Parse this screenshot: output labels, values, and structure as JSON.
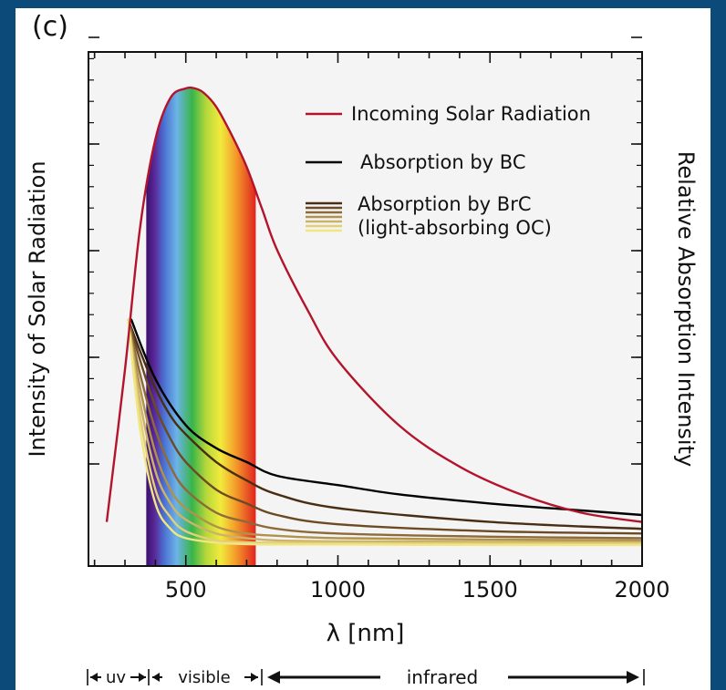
{
  "panel_label": "(c)",
  "chart_data": {
    "type": "line",
    "xlabel": "λ [nm]",
    "ylabel_left": "Intensity of Solar Radiation",
    "ylabel_right": "Relative Absorption Intensity",
    "xlim": [
      180,
      2000
    ],
    "ylim": [
      0,
      1
    ],
    "x_ticks": [
      500,
      1000,
      1500,
      2000
    ],
    "x_tick_labels": [
      "500",
      "1000",
      "1500",
      "2000"
    ],
    "visible_band_nm": [
      370,
      730
    ],
    "series": [
      {
        "name": "Incoming Solar Radiation",
        "color": "#b3142c",
        "x": [
          240,
          300,
          350,
          400,
          450,
          500,
          530,
          560,
          600,
          650,
          700,
          750,
          800,
          900,
          1000,
          1200,
          1400,
          1600,
          1800,
          2000
        ],
        "y": [
          0.06,
          0.39,
          0.7,
          0.89,
          0.98,
          1.0,
          1.0,
          0.99,
          0.96,
          0.9,
          0.83,
          0.74,
          0.65,
          0.52,
          0.41,
          0.27,
          0.18,
          0.12,
          0.08,
          0.06
        ]
      },
      {
        "name": "Absorption by BC",
        "color": "#000000",
        "x": [
          320,
          400,
          500,
          600,
          700,
          800,
          1000,
          1200,
          1500,
          1800,
          2000
        ],
        "y": [
          0.5,
          0.37,
          0.27,
          0.22,
          0.19,
          0.16,
          0.14,
          0.12,
          0.1,
          0.085,
          0.075
        ]
      }
    ],
    "brc_series": {
      "name": "Absorption by BrC\n(light-absorbing OC)",
      "colors": [
        "#4a2e14",
        "#6b4a24",
        "#8c6a3a",
        "#b0924a",
        "#cdb36a",
        "#e3cf78",
        "#f1e684"
      ],
      "x": [
        310,
        350,
        400,
        450,
        500,
        600,
        700,
        800,
        1000,
        1500,
        2000
      ],
      "curves": [
        [
          0.5,
          0.43,
          0.35,
          0.29,
          0.25,
          0.19,
          0.15,
          0.12,
          0.09,
          0.06,
          0.045
        ],
        [
          0.5,
          0.41,
          0.31,
          0.24,
          0.19,
          0.13,
          0.1,
          0.075,
          0.055,
          0.04,
          0.035
        ],
        [
          0.5,
          0.38,
          0.26,
          0.18,
          0.13,
          0.08,
          0.06,
          0.045,
          0.035,
          0.028,
          0.025
        ],
        [
          0.5,
          0.35,
          0.21,
          0.13,
          0.09,
          0.05,
          0.035,
          0.03,
          0.025,
          0.022,
          0.02
        ],
        [
          0.5,
          0.32,
          0.17,
          0.1,
          0.065,
          0.035,
          0.025,
          0.02,
          0.018,
          0.017,
          0.016
        ],
        [
          0.5,
          0.29,
          0.13,
          0.07,
          0.04,
          0.02,
          0.016,
          0.015,
          0.014,
          0.013,
          0.013
        ],
        [
          0.5,
          0.26,
          0.1,
          0.045,
          0.025,
          0.015,
          0.012,
          0.011,
          0.011,
          0.01,
          0.01
        ]
      ]
    },
    "legend_position": "top-right",
    "regions": [
      "uv",
      "visible",
      "infrared"
    ]
  }
}
